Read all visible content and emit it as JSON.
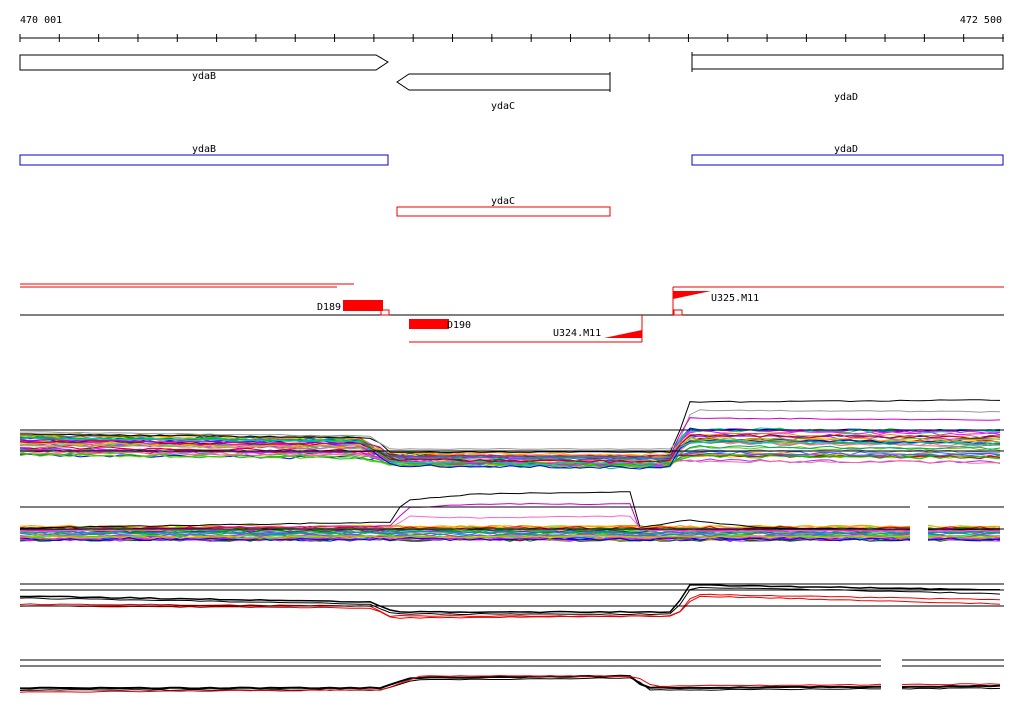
{
  "axis": {
    "start_label": "470 001",
    "end_label": "472 500",
    "start": 470001,
    "end": 472500,
    "tick_count": 26
  },
  "genes": [
    {
      "name": "ydaB",
      "strand": "+",
      "start": 470001,
      "end": 470938
    },
    {
      "name": "ydaC",
      "strand": "-",
      "start": 470960,
      "end": 471500
    },
    {
      "name": "ydaD",
      "strand": "+",
      "start": 471710,
      "end": 472500
    }
  ],
  "annotations": {
    "blue": [
      {
        "name": "ydaB",
        "start": 470001,
        "end": 470938
      },
      {
        "name": "ydaD",
        "start": 471710,
        "end": 472500
      }
    ],
    "red": [
      {
        "name": "ydaC",
        "start": 470960,
        "end": 471500
      }
    ]
  },
  "features": {
    "d189": "D189",
    "d190": "D190",
    "u324": "U324.M11",
    "u325": "U325.M11"
  },
  "colors": {
    "gene_outline": "#000000",
    "blue_box": "#0000cc",
    "red_box": "#ee0000",
    "feature_red": "#ff0000"
  }
}
